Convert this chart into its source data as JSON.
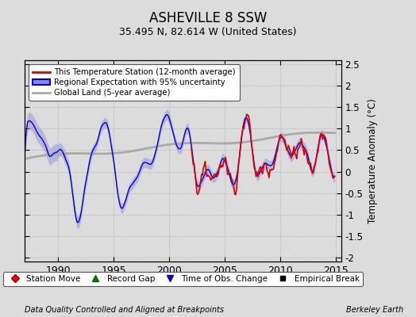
{
  "title": "ASHEVILLE 8 SSW",
  "subtitle": "35.495 N, 82.614 W (United States)",
  "legend_line1": "This Temperature Station (12-month average)",
  "legend_line2": "Regional Expectation with 95% uncertainty",
  "legend_line3": "Global Land (5-year average)",
  "legend_items": [
    "Station Move",
    "Record Gap",
    "Time of Obs. Change",
    "Empirical Break"
  ],
  "footer_left": "Data Quality Controlled and Aligned at Breakpoints",
  "footer_right": "Berkeley Earth",
  "xlim": [
    1987.0,
    2015.5
  ],
  "ylim": [
    -2.1,
    2.6
  ],
  "yticks": [
    -2,
    -1.5,
    -1,
    -0.5,
    0,
    0.5,
    1,
    1.5,
    2,
    2.5
  ],
  "xticks": [
    1990,
    1995,
    2000,
    2005,
    2010,
    2015
  ],
  "background_color": "#dcdcdc",
  "plot_background": "#dcdcdc",
  "station_color": "#dd0000",
  "regional_color": "#0000cc",
  "regional_fill_color": "#8888dd",
  "global_color": "#aaaaaa",
  "ylabel": "Temperature Anomaly (°C)"
}
